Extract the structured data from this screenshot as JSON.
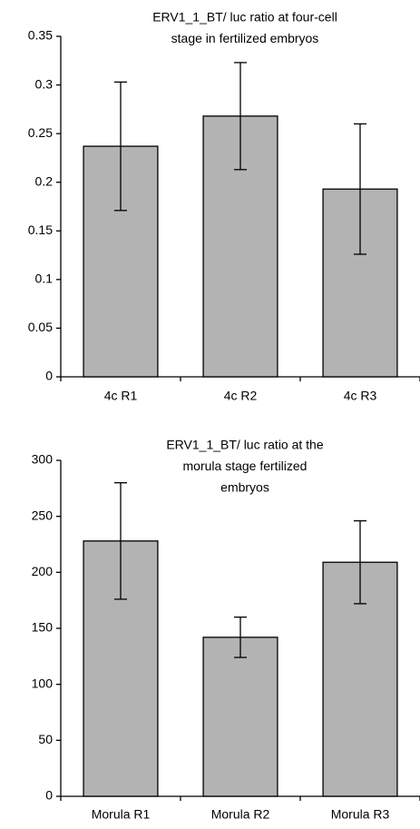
{
  "chart_data": [
    {
      "type": "bar",
      "title": [
        "ERV1_1_BT/ luc ratio at four-cell",
        "stage in fertilized embryos"
      ],
      "categories": [
        "4c R1",
        "4c R2",
        "4c R3"
      ],
      "values": [
        0.237,
        0.268,
        0.193
      ],
      "errors": [
        0.066,
        0.055,
        0.067
      ],
      "color": "#b3b3b3",
      "ylim": [
        0,
        0.35
      ],
      "yticks": [
        0,
        0.05,
        0.1,
        0.15,
        0.2,
        0.25,
        0.3,
        0.35
      ],
      "grid": false
    },
    {
      "type": "bar",
      "title": [
        "ERV1_1_BT/ luc ratio at the",
        "morula stage fertilized",
        "embryos"
      ],
      "categories": [
        "Morula R1",
        "Morula R2",
        "Morula R3"
      ],
      "values": [
        228,
        142,
        209
      ],
      "errors": [
        52,
        18,
        37
      ],
      "color": "#b3b3b3",
      "ylim": [
        0,
        300
      ],
      "yticks": [
        0,
        50,
        100,
        150,
        200,
        250,
        300
      ],
      "grid": false
    }
  ]
}
